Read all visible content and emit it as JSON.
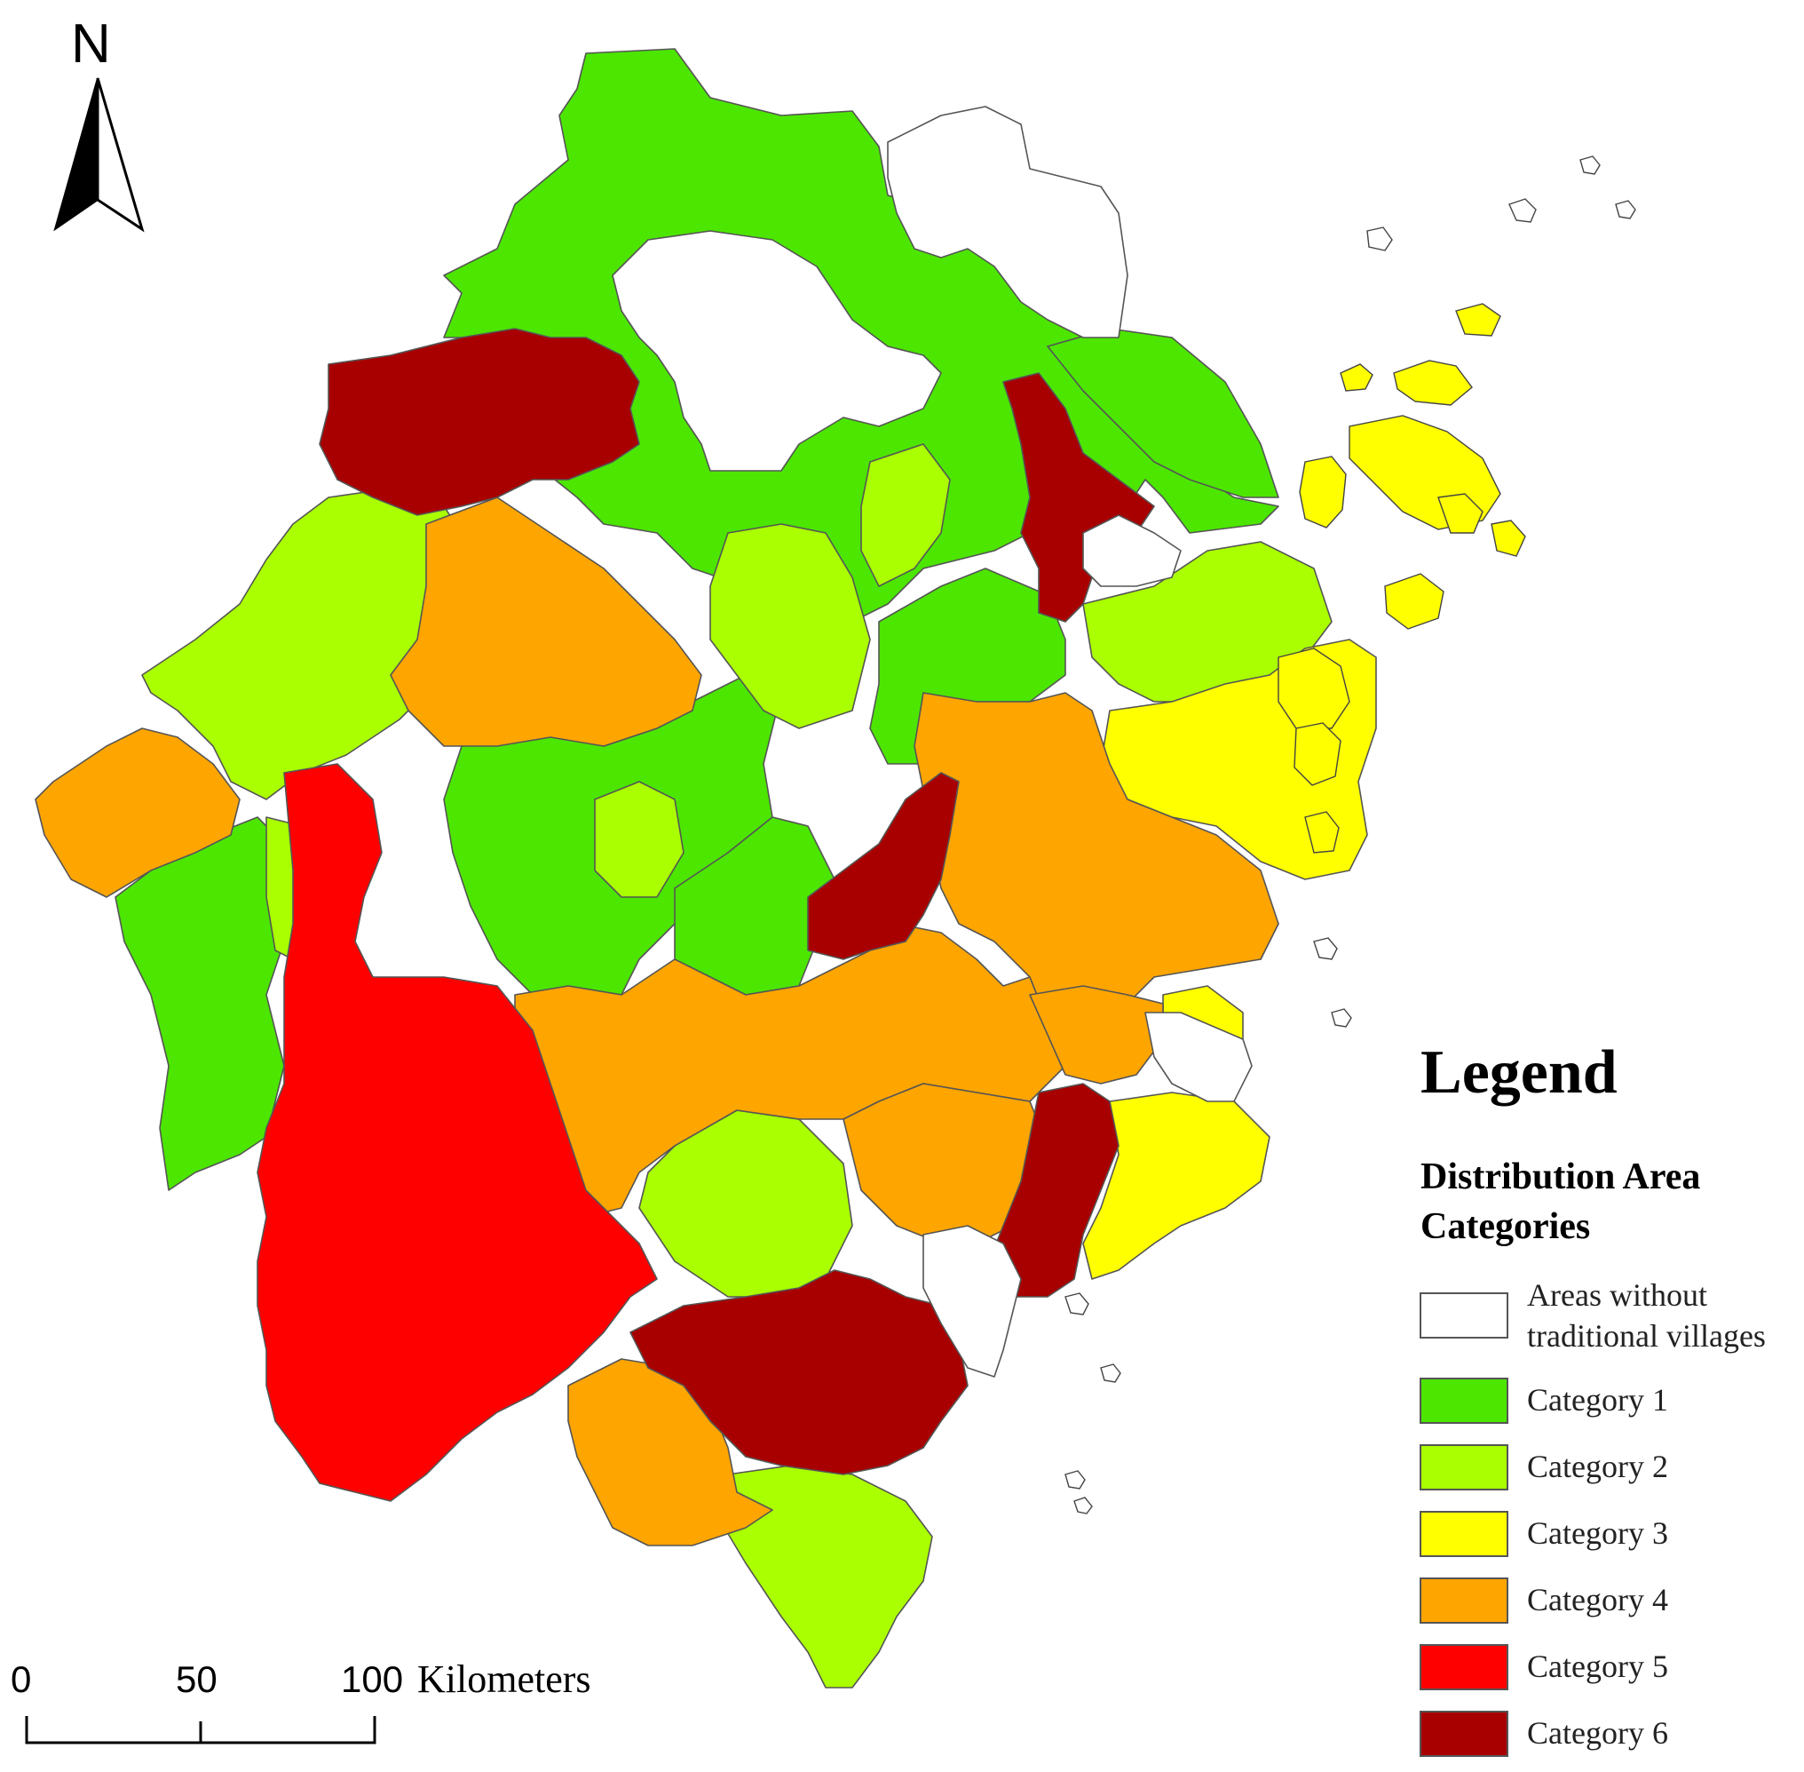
{
  "north_arrow": {
    "label": "N"
  },
  "legend": {
    "title": "Legend",
    "subtitle_line1": "Distribution Area",
    "subtitle_line2": "Categories",
    "items": [
      {
        "label_line1": "Areas without",
        "label_line2": "traditional villages",
        "color": "#ffffff"
      },
      {
        "label_line1": "Category 1",
        "label_line2": "",
        "color": "#4ce600"
      },
      {
        "label_line1": "Category 2",
        "label_line2": "",
        "color": "#aaff00"
      },
      {
        "label_line1": "Category 3",
        "label_line2": "",
        "color": "#ffff00"
      },
      {
        "label_line1": "Category 4",
        "label_line2": "",
        "color": "#ffa500"
      },
      {
        "label_line1": "Category 5",
        "label_line2": "",
        "color": "#ff0000"
      },
      {
        "label_line1": "Category 6",
        "label_line2": "",
        "color": "#a80000"
      }
    ]
  },
  "scale_bar": {
    "ticks": [
      "0",
      "50",
      "100"
    ],
    "unit": "Kilometers"
  },
  "colors": {
    "cat0": "#ffffff",
    "cat1": "#4ce600",
    "cat2": "#aaff00",
    "cat3": "#ffff00",
    "cat4": "#ffa500",
    "cat5": "#ff0000",
    "cat6": "#a80000"
  }
}
